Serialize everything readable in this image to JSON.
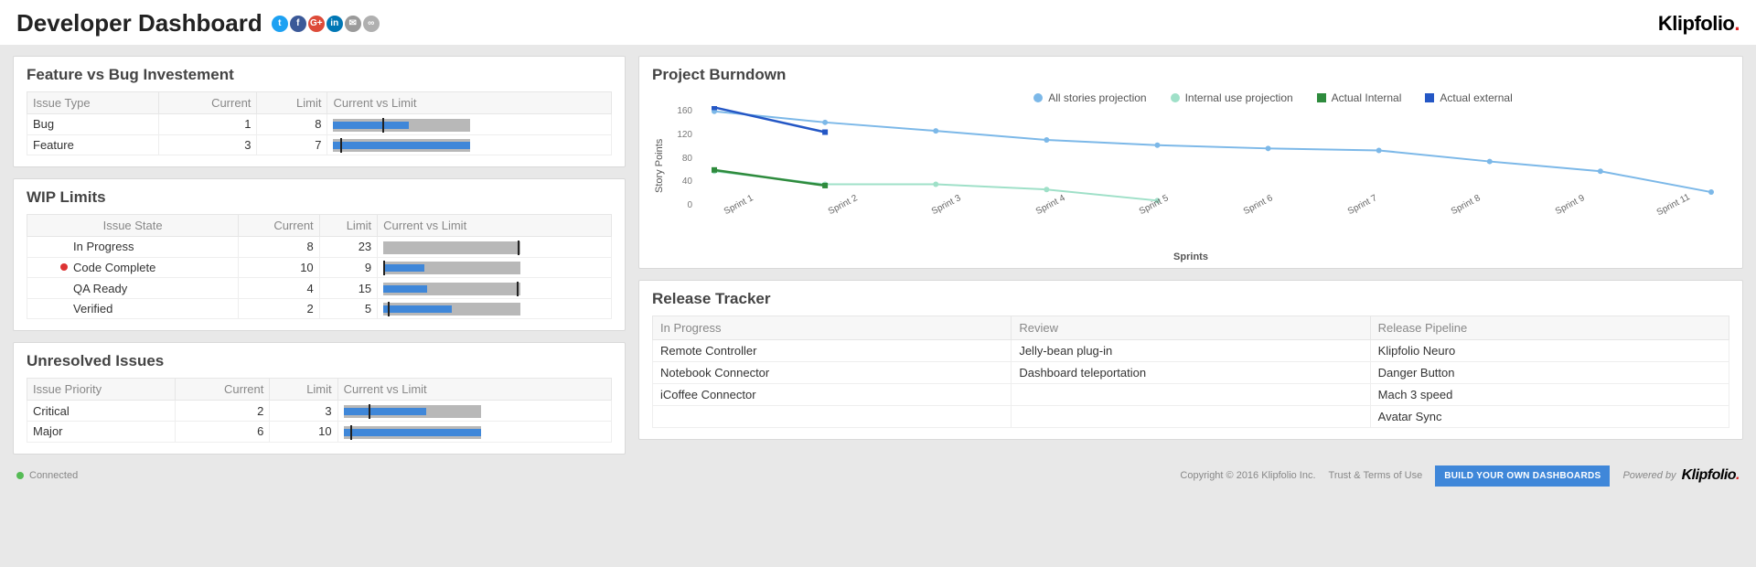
{
  "header": {
    "title": "Developer Dashboard",
    "social_icons": [
      {
        "name": "twitter",
        "bg": "#1da1f2",
        "glyph": "t"
      },
      {
        "name": "facebook",
        "bg": "#3b5998",
        "glyph": "f"
      },
      {
        "name": "google",
        "bg": "#dd4b39",
        "glyph": "G+"
      },
      {
        "name": "linkedin",
        "bg": "#0077b5",
        "glyph": "in"
      },
      {
        "name": "mail",
        "bg": "#9a9a9a",
        "glyph": "✉"
      },
      {
        "name": "link",
        "bg": "#b0b0b0",
        "glyph": "∞"
      }
    ],
    "logo_text": "Klipfolio",
    "logo_dot": "."
  },
  "feature_bug": {
    "title": "Feature vs Bug Investement",
    "columns": [
      "Issue Type",
      "Current",
      "Limit",
      "Current vs Limit"
    ],
    "rows": [
      {
        "type": "Bug",
        "current": 1,
        "limit": 8
      },
      {
        "type": "Feature",
        "current": 3,
        "limit": 7
      }
    ],
    "bar_fill_pct": [
      55,
      100
    ],
    "bar_mark_pct": [
      36,
      5
    ],
    "bar_color": "#3f87d9",
    "track_color": "#b8b8b8"
  },
  "wip": {
    "title": "WIP Limits",
    "columns": [
      "Issue State",
      "Current",
      "Limit",
      "Current vs Limit"
    ],
    "rows": [
      {
        "state": "In Progress",
        "current": 8,
        "limit": 23,
        "alert": false,
        "fill_pct": 0,
        "mark_pct": 98
      },
      {
        "state": "Code Complete",
        "current": 10,
        "limit": 9,
        "alert": true,
        "fill_pct": 30,
        "mark_pct": 0
      },
      {
        "state": "QA Ready",
        "current": 4,
        "limit": 15,
        "alert": false,
        "fill_pct": 32,
        "mark_pct": 97
      },
      {
        "state": "Verified",
        "current": 2,
        "limit": 5,
        "alert": false,
        "fill_pct": 50,
        "mark_pct": 3
      }
    ]
  },
  "unresolved": {
    "title": "Unresolved Issues",
    "columns": [
      "Issue Priority",
      "Current",
      "Limit",
      "Current vs Limit"
    ],
    "rows": [
      {
        "priority": "Critical",
        "current": 2,
        "limit": 3,
        "fill_pct": 60,
        "mark_pct": 18
      },
      {
        "priority": "Major",
        "current": 6,
        "limit": 10,
        "fill_pct": 100,
        "mark_pct": 5
      }
    ]
  },
  "burndown": {
    "title": "Project Burndown",
    "ylabel": "Story Points",
    "xlabel": "Sprints",
    "ylim": [
      0,
      160
    ],
    "ytick_step": 40,
    "yticks": [
      "160",
      "120",
      "80",
      "40",
      "0"
    ],
    "categories": [
      "Sprint 1",
      "Sprint 2",
      "Sprint 3",
      "Sprint 4",
      "Sprint 5",
      "Sprint 6",
      "Sprint 7",
      "Sprint 8",
      "Sprint 9",
      "Sprint 11"
    ],
    "background_color": "#ffffff",
    "series": [
      {
        "name": "All stories projection",
        "color": "#7cb8e8",
        "width": 2,
        "dash": "",
        "marker": "circle",
        "values": [
          152,
          135,
          122,
          108,
          100,
          95,
          92,
          75,
          60,
          28
        ]
      },
      {
        "name": "Internal use projection",
        "color": "#9fe0c8",
        "width": 2,
        "dash": "",
        "marker": "circle",
        "values": [
          60,
          40,
          40,
          32,
          15,
          null,
          null,
          null,
          null,
          null
        ]
      },
      {
        "name": "Actual Internal",
        "color": "#2e8b3d",
        "width": 2.5,
        "dash": "",
        "marker": "square",
        "values": [
          62,
          38,
          null,
          null,
          null,
          null,
          null,
          null,
          null,
          null
        ]
      },
      {
        "name": "Actual external",
        "color": "#2457c5",
        "width": 2.5,
        "dash": "",
        "marker": "square",
        "values": [
          158,
          120,
          null,
          null,
          null,
          null,
          null,
          null,
          null,
          null
        ]
      }
    ]
  },
  "release": {
    "title": "Release Tracker",
    "columns": [
      "In Progress",
      "Review",
      "Release Pipeline"
    ],
    "rows": [
      [
        "Remote Controller",
        "Jelly-bean plug-in",
        "Klipfolio Neuro"
      ],
      [
        "Notebook Connector",
        "Dashboard teleportation",
        "Danger Button"
      ],
      [
        "iCoffee Connector",
        "",
        "Mach 3 speed"
      ],
      [
        "",
        "",
        "Avatar Sync"
      ]
    ]
  },
  "footer": {
    "connected": "Connected",
    "copyright": "Copyright © 2016 Klipfolio Inc.",
    "trust": "Trust & Terms of Use",
    "cta": "BUILD YOUR OWN DASHBOARDS",
    "powered_by": "Powered by",
    "logo_text": "Klipfolio",
    "logo_dot": "."
  }
}
